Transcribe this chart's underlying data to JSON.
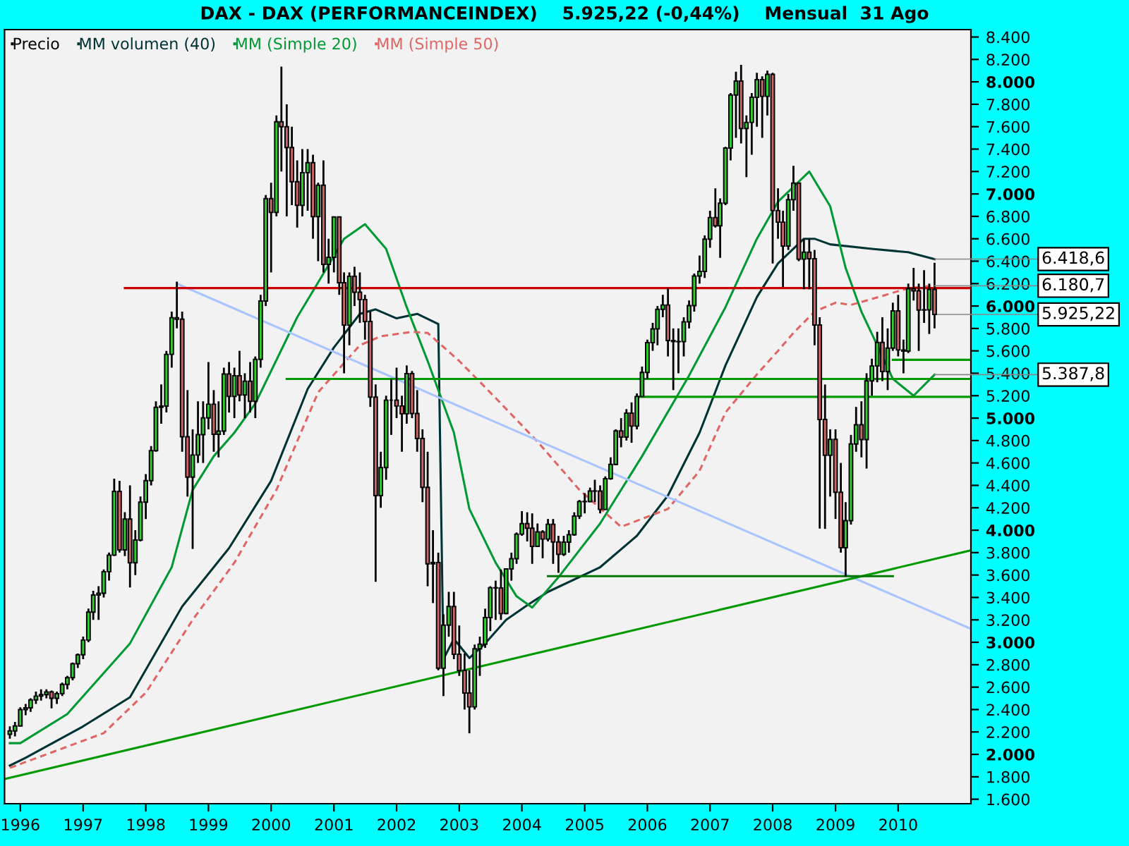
{
  "chart_data": {
    "type": "candlestick",
    "title": "DAX - DAX (PERFORMANCEINDEX)    5.925,22 (-0,44%)    Mensual  31 Ago",
    "legend": "top left",
    "grid": false,
    "xlim": [
      "1995-10",
      "2011-03"
    ],
    "xticks": [
      {
        "value": "1996",
        "label": "1996"
      },
      {
        "value": "1997",
        "label": "1997"
      },
      {
        "value": "1998",
        "label": "1998"
      },
      {
        "value": "1999",
        "label": "1999"
      },
      {
        "value": "2000",
        "label": "2000"
      },
      {
        "value": "2001",
        "label": "2001"
      },
      {
        "value": "2002",
        "label": "2002"
      },
      {
        "value": "2003",
        "label": "2003"
      },
      {
        "value": "2004",
        "label": "2004"
      },
      {
        "value": "2005",
        "label": "2005"
      },
      {
        "value": "2006",
        "label": "2006"
      },
      {
        "value": "2007",
        "label": "2007"
      },
      {
        "value": "2008",
        "label": "2008"
      },
      {
        "value": "2009",
        "label": "2009"
      },
      {
        "value": "2010",
        "label": "2010"
      }
    ],
    "ylim": [
      1560,
      8466
    ],
    "yticks": [
      {
        "value": 1600,
        "label": "1.600"
      },
      {
        "value": 1800,
        "label": "1.800"
      },
      {
        "value": 2000,
        "label": "2.000"
      },
      {
        "value": 2200,
        "label": "2.200"
      },
      {
        "value": 2400,
        "label": "2.400"
      },
      {
        "value": 2600,
        "label": "2.600"
      },
      {
        "value": 2800,
        "label": "2.800"
      },
      {
        "value": 3000,
        "label": "3.000"
      },
      {
        "value": 3200,
        "label": "3.200"
      },
      {
        "value": 3400,
        "label": "3.400"
      },
      {
        "value": 3600,
        "label": "3.600"
      },
      {
        "value": 3800,
        "label": "3.800"
      },
      {
        "value": 4000,
        "label": "4.000"
      },
      {
        "value": 4200,
        "label": "4.200"
      },
      {
        "value": 4400,
        "label": "4.400"
      },
      {
        "value": 4600,
        "label": "4.600"
      },
      {
        "value": 4800,
        "label": "4.800"
      },
      {
        "value": 5000,
        "label": "5.000"
      },
      {
        "value": 5200,
        "label": "5.200"
      },
      {
        "value": 5400,
        "label": "5.400"
      },
      {
        "value": 5600,
        "label": "5.600"
      },
      {
        "value": 5800,
        "label": "5.800"
      },
      {
        "value": 6000,
        "label": "6.000"
      },
      {
        "value": 6200,
        "label": "6.200"
      },
      {
        "value": 6400,
        "label": "6.400"
      },
      {
        "value": 6600,
        "label": "6.600"
      },
      {
        "value": 6800,
        "label": "6.800"
      },
      {
        "value": 7000,
        "label": "7.000"
      },
      {
        "value": 7200,
        "label": "7.200"
      },
      {
        "value": 7400,
        "label": "7.400"
      },
      {
        "value": 7600,
        "label": "7.600"
      },
      {
        "value": 7800,
        "label": "7.800"
      },
      {
        "value": 8000,
        "label": "8.000"
      },
      {
        "value": 8200,
        "label": "8.200"
      },
      {
        "value": 8400,
        "label": "8.400"
      }
    ],
    "annotations": [
      {
        "text": "6.418,6",
        "x": "2010-08",
        "y": 6418.6
      },
      {
        "text": "6.180,7",
        "x": "2010-08",
        "y": 6180.7
      },
      {
        "text": "5.925,22",
        "x": "2010-08",
        "y": 5925.22
      },
      {
        "text": "5.387,8",
        "x": "2010-08",
        "y": 5387.8
      }
    ],
    "series": [
      {
        "name": "Precio",
        "color": "#000000",
        "x": [
          "1995-11",
          "1995-12",
          "1996-01",
          "1996-02",
          "1996-03",
          "1996-04",
          "1996-05",
          "1996-06",
          "1996-07",
          "1996-08",
          "1996-09",
          "1996-10",
          "1996-11",
          "1996-12",
          "1997-01",
          "1997-02",
          "1997-03",
          "1997-04",
          "1997-05",
          "1997-06",
          "1997-07",
          "1997-08",
          "1997-09",
          "1997-10",
          "1997-11",
          "1997-12",
          "1998-01",
          "1998-02",
          "1998-03",
          "1998-04",
          "1998-05",
          "1998-06",
          "1998-07",
          "1998-08",
          "1998-09",
          "1998-10",
          "1998-11",
          "1998-12",
          "1999-01",
          "1999-02",
          "1999-03",
          "1999-04",
          "1999-05",
          "1999-06",
          "1999-07",
          "1999-08",
          "1999-09",
          "1999-10",
          "1999-11",
          "1999-12",
          "2000-01",
          "2000-02",
          "2000-03",
          "2000-04",
          "2000-05",
          "2000-06",
          "2000-07",
          "2000-08",
          "2000-09",
          "2000-10",
          "2000-11",
          "2000-12",
          "2001-01",
          "2001-02",
          "2001-03",
          "2001-04",
          "2001-05",
          "2001-06",
          "2001-07",
          "2001-08",
          "2001-09",
          "2001-10",
          "2001-11",
          "2001-12",
          "2002-01",
          "2002-02",
          "2002-03",
          "2002-04",
          "2002-05",
          "2002-06",
          "2002-07",
          "2002-08",
          "2002-09",
          "2002-10",
          "2002-11",
          "2002-12",
          "2003-01",
          "2003-02",
          "2003-03",
          "2003-04",
          "2003-05",
          "2003-06",
          "2003-07",
          "2003-08",
          "2003-09",
          "2003-10",
          "2003-11",
          "2003-12",
          "2004-01",
          "2004-02",
          "2004-03",
          "2004-04",
          "2004-05",
          "2004-06",
          "2004-07",
          "2004-08",
          "2004-09",
          "2004-10",
          "2004-11",
          "2004-12",
          "2005-01",
          "2005-02",
          "2005-03",
          "2005-04",
          "2005-05",
          "2005-06",
          "2005-07",
          "2005-08",
          "2005-09",
          "2005-10",
          "2005-11",
          "2005-12",
          "2006-01",
          "2006-02",
          "2006-03",
          "2006-04",
          "2006-05",
          "2006-06",
          "2006-07",
          "2006-08",
          "2006-09",
          "2006-10",
          "2006-11",
          "2006-12",
          "2007-01",
          "2007-02",
          "2007-03",
          "2007-04",
          "2007-05",
          "2007-06",
          "2007-07",
          "2007-08",
          "2007-09",
          "2007-10",
          "2007-11",
          "2007-12",
          "2008-01",
          "2008-02",
          "2008-03",
          "2008-04",
          "2008-05",
          "2008-06",
          "2008-07",
          "2008-08",
          "2008-09",
          "2008-10",
          "2008-11",
          "2008-12",
          "2009-01",
          "2009-02",
          "2009-03",
          "2009-04",
          "2009-05",
          "2009-06",
          "2009-07",
          "2009-08",
          "2009-09",
          "2009-10",
          "2009-11",
          "2009-12",
          "2010-01",
          "2010-02",
          "2010-03",
          "2010-04",
          "2010-05",
          "2010-06",
          "2010-07",
          "2010-08"
        ],
        "ohlc": [
          [
            2180,
            2250,
            2140,
            2210
          ],
          [
            2210,
            2290,
            2160,
            2254
          ],
          [
            2254,
            2420,
            2250,
            2400
          ],
          [
            2400,
            2450,
            2350,
            2415
          ],
          [
            2415,
            2500,
            2380,
            2486
          ],
          [
            2486,
            2560,
            2450,
            2520
          ],
          [
            2520,
            2580,
            2480,
            2533
          ],
          [
            2533,
            2580,
            2500,
            2557
          ],
          [
            2557,
            2570,
            2410,
            2500
          ],
          [
            2500,
            2560,
            2450,
            2542
          ],
          [
            2542,
            2640,
            2520,
            2625
          ],
          [
            2625,
            2700,
            2580,
            2684
          ],
          [
            2684,
            2820,
            2660,
            2808
          ],
          [
            2808,
            2900,
            2770,
            2889
          ],
          [
            2889,
            3050,
            2850,
            3020
          ],
          [
            3020,
            3300,
            3000,
            3269
          ],
          [
            3269,
            3460,
            3200,
            3422
          ],
          [
            3422,
            3500,
            3200,
            3438
          ],
          [
            3438,
            3650,
            3400,
            3630
          ],
          [
            3630,
            3800,
            3550,
            3778
          ],
          [
            3778,
            4460,
            3770,
            4346
          ],
          [
            4346,
            4440,
            3800,
            3824
          ],
          [
            3824,
            4160,
            3770,
            4100
          ],
          [
            4100,
            4400,
            3490,
            3709
          ],
          [
            3709,
            4000,
            3600,
            3912
          ],
          [
            3912,
            4300,
            3900,
            4250
          ],
          [
            4250,
            4500,
            4100,
            4442
          ],
          [
            4442,
            4750,
            4400,
            4710
          ],
          [
            4710,
            5150,
            4700,
            5096
          ],
          [
            5096,
            5300,
            4950,
            5107
          ],
          [
            5107,
            5600,
            5050,
            5569
          ],
          [
            5569,
            5950,
            5450,
            5896
          ],
          [
            5896,
            6218,
            5800,
            5883
          ],
          [
            5883,
            5950,
            4700,
            4834
          ],
          [
            4834,
            5250,
            4300,
            4474
          ],
          [
            4474,
            4900,
            3833,
            4671
          ],
          [
            4671,
            5150,
            4600,
            4853
          ],
          [
            4853,
            5150,
            4600,
            5002
          ],
          [
            5002,
            5500,
            4900,
            5124
          ],
          [
            5124,
            5250,
            4700,
            4856
          ],
          [
            4856,
            5150,
            4650,
            4884
          ],
          [
            4884,
            5450,
            4850,
            5393
          ],
          [
            5393,
            5500,
            5050,
            5194
          ],
          [
            5194,
            5450,
            5000,
            5378
          ],
          [
            5378,
            5600,
            5150,
            5207
          ],
          [
            5207,
            5400,
            5000,
            5329
          ],
          [
            5329,
            5500,
            5050,
            5150
          ],
          [
            5150,
            5550,
            5000,
            5524
          ],
          [
            5524,
            6100,
            5450,
            6045
          ],
          [
            6045,
            6990,
            6000,
            6958
          ],
          [
            6958,
            7100,
            6300,
            6835
          ],
          [
            6835,
            7700,
            6800,
            7644
          ],
          [
            7644,
            8136,
            7200,
            7599
          ],
          [
            7599,
            7800,
            6800,
            7414
          ],
          [
            7414,
            7600,
            6900,
            7109
          ],
          [
            7109,
            7300,
            6700,
            6898
          ],
          [
            6898,
            7400,
            6800,
            7190
          ],
          [
            7190,
            7400,
            6850,
            7279
          ],
          [
            7279,
            7350,
            6600,
            6798
          ],
          [
            6798,
            7100,
            6400,
            7077
          ],
          [
            7077,
            7300,
            6300,
            6372
          ],
          [
            6372,
            6600,
            6200,
            6434
          ],
          [
            6434,
            6800,
            6300,
            6795
          ],
          [
            6795,
            6800,
            6100,
            6208
          ],
          [
            6208,
            6300,
            5400,
            5830
          ],
          [
            5830,
            6300,
            5650,
            6265
          ],
          [
            6265,
            6350,
            6000,
            6123
          ],
          [
            6123,
            6300,
            5850,
            6058
          ],
          [
            6058,
            6100,
            5700,
            5862
          ],
          [
            5862,
            5950,
            5100,
            5188
          ],
          [
            5188,
            5300,
            3540,
            4308
          ],
          [
            4308,
            4700,
            4200,
            4559
          ],
          [
            4559,
            5200,
            4450,
            5160
          ],
          [
            5160,
            5350,
            4850,
            5160
          ],
          [
            5160,
            5450,
            5000,
            5108
          ],
          [
            5108,
            5200,
            4700,
            5039
          ],
          [
            5039,
            5470,
            4950,
            5397
          ],
          [
            5397,
            5420,
            5000,
            5041
          ],
          [
            5041,
            5250,
            4700,
            4818
          ],
          [
            4818,
            4900,
            4250,
            4383
          ],
          [
            4383,
            4700,
            3500,
            3700
          ],
          [
            3700,
            4000,
            3350,
            3712
          ],
          [
            3712,
            3800,
            2750,
            2769
          ],
          [
            2769,
            3250,
            2520,
            3153
          ],
          [
            3153,
            3450,
            3050,
            3320
          ],
          [
            3320,
            3450,
            2850,
            2893
          ],
          [
            2893,
            3150,
            2700,
            2748
          ],
          [
            2748,
            2900,
            2400,
            2547
          ],
          [
            2547,
            2750,
            2188,
            2424
          ],
          [
            2424,
            2980,
            2400,
            2942
          ],
          [
            2942,
            3050,
            2700,
            2983
          ],
          [
            2983,
            3300,
            2950,
            3221
          ],
          [
            3221,
            3500,
            3100,
            3487
          ],
          [
            3487,
            3550,
            3200,
            3485
          ],
          [
            3485,
            3650,
            3200,
            3257
          ],
          [
            3257,
            3660,
            3250,
            3655
          ],
          [
            3655,
            3800,
            3550,
            3746
          ],
          [
            3746,
            3980,
            3700,
            3965
          ],
          [
            3965,
            4170,
            3950,
            4058
          ],
          [
            4058,
            4160,
            3900,
            4018
          ],
          [
            4018,
            4150,
            3700,
            3856
          ],
          [
            3856,
            4060,
            3850,
            3985
          ],
          [
            3985,
            4000,
            3750,
            3921
          ],
          [
            3921,
            4100,
            3900,
            4053
          ],
          [
            4053,
            4100,
            3700,
            3895
          ],
          [
            3895,
            3950,
            3620,
            3785
          ],
          [
            3785,
            3950,
            3770,
            3893
          ],
          [
            3893,
            4000,
            3800,
            3960
          ],
          [
            3960,
            4160,
            3950,
            4126
          ],
          [
            4126,
            4270,
            4100,
            4256
          ],
          [
            4256,
            4330,
            4150,
            4255
          ],
          [
            4255,
            4380,
            4250,
            4350
          ],
          [
            4350,
            4450,
            4250,
            4349
          ],
          [
            4349,
            4400,
            4150,
            4185
          ],
          [
            4185,
            4480,
            4180,
            4460
          ],
          [
            4460,
            4650,
            4450,
            4587
          ],
          [
            4587,
            4900,
            4580,
            4886
          ],
          [
            4886,
            5000,
            4740,
            4830
          ],
          [
            4830,
            5080,
            4800,
            5044
          ],
          [
            5044,
            5140,
            4780,
            4929
          ],
          [
            4929,
            5220,
            4900,
            5193
          ],
          [
            5193,
            5460,
            5190,
            5408
          ],
          [
            5408,
            5700,
            5350,
            5674
          ],
          [
            5674,
            5850,
            5600,
            5796
          ],
          [
            5796,
            6000,
            5650,
            5970
          ],
          [
            5970,
            6100,
            5900,
            6009
          ],
          [
            6009,
            6160,
            5550,
            5692
          ],
          [
            5692,
            5800,
            5250,
            5683
          ],
          [
            5683,
            5800,
            5400,
            5682
          ],
          [
            5682,
            5900,
            5550,
            5859
          ],
          [
            5859,
            6050,
            5800,
            6004
          ],
          [
            6004,
            6290,
            5950,
            6268
          ],
          [
            6268,
            6450,
            6200,
            6309
          ],
          [
            6309,
            6630,
            6250,
            6597
          ],
          [
            6597,
            6850,
            6520,
            6789
          ],
          [
            6789,
            7050,
            6700,
            6716
          ],
          [
            6716,
            6960,
            6430,
            6917
          ],
          [
            6917,
            7420,
            6900,
            7409
          ],
          [
            7409,
            7900,
            7300,
            7883
          ],
          [
            7883,
            8090,
            7500,
            8007
          ],
          [
            8007,
            8151,
            7450,
            7584
          ],
          [
            7584,
            7700,
            7150,
            7638
          ],
          [
            7638,
            7900,
            7350,
            7862
          ],
          [
            7862,
            8080,
            7600,
            8020
          ],
          [
            8020,
            8050,
            7500,
            7871
          ],
          [
            7871,
            8100,
            7700,
            8067
          ],
          [
            8067,
            8080,
            6380,
            6852
          ],
          [
            6852,
            7050,
            6600,
            6748
          ],
          [
            6748,
            6850,
            6170,
            6535
          ],
          [
            6535,
            7000,
            6500,
            6949
          ],
          [
            6949,
            7250,
            6850,
            7097
          ],
          [
            7097,
            7100,
            6400,
            6418
          ],
          [
            6418,
            6600,
            6150,
            6480
          ],
          [
            6480,
            6600,
            6150,
            6422
          ],
          [
            6422,
            6500,
            5650,
            5831
          ],
          [
            5831,
            5900,
            4014,
            4988
          ],
          [
            4988,
            5300,
            4012,
            4669
          ],
          [
            4669,
            4900,
            4300,
            4810
          ],
          [
            4810,
            4900,
            4100,
            4338
          ],
          [
            4338,
            4600,
            3800,
            3844
          ],
          [
            3844,
            4250,
            3588,
            4085
          ],
          [
            4085,
            4850,
            4050,
            4769
          ],
          [
            4769,
            5100,
            4700,
            4941
          ],
          [
            4941,
            5150,
            4650,
            4809
          ],
          [
            4809,
            5400,
            4550,
            5332
          ],
          [
            5332,
            5530,
            5200,
            5465
          ],
          [
            5465,
            5770,
            5320,
            5675
          ],
          [
            5675,
            5900,
            5330,
            5415
          ],
          [
            5415,
            5800,
            5250,
            5625
          ],
          [
            5625,
            6030,
            5600,
            5957
          ],
          [
            5957,
            6100,
            5550,
            5608
          ],
          [
            5608,
            5700,
            5400,
            5598
          ],
          [
            5598,
            6200,
            5580,
            6154
          ],
          [
            6154,
            6340,
            6050,
            6136
          ],
          [
            6136,
            6200,
            5600,
            5964
          ],
          [
            5964,
            6320,
            5850,
            5966
          ],
          [
            5966,
            6200,
            5750,
            6148
          ],
          [
            6148,
            6386,
            5800,
            5925
          ]
        ]
      },
      {
        "name": "MM volumen (40)",
        "type": "line",
        "color": "#003333",
        "x": [
          "1995-11",
          "1996-02",
          "1997-01",
          "1997-10",
          "1998-08",
          "1999-05",
          "2000-01",
          "2000-08",
          "2001-01",
          "2001-06",
          "2001-09",
          "2002-01",
          "2002-05",
          "2002-09",
          "2002-10",
          "2002-12",
          "2003-03",
          "2003-06",
          "2003-10",
          "2004-02",
          "2004-06",
          "2005-04",
          "2005-11",
          "2006-05",
          "2006-11",
          "2007-04",
          "2007-10",
          "2008-02",
          "2008-07",
          "2008-09",
          "2008-12",
          "2009-08",
          "2010-03",
          "2010-08"
        ],
        "values": [
          1900,
          1970,
          2250,
          2510,
          3320,
          3840,
          4440,
          5260,
          5630,
          5930,
          5970,
          5890,
          5930,
          5840,
          2850,
          3030,
          2860,
          2990,
          3200,
          3330,
          3450,
          3670,
          3950,
          4310,
          4870,
          5470,
          6080,
          6380,
          6600,
          6600,
          6550,
          6510,
          6480,
          6418.6
        ]
      },
      {
        "name": "MM (Simple 20)",
        "type": "line",
        "color": "#009933",
        "x": [
          "1995-11",
          "1996-01",
          "1996-10",
          "1997-10",
          "1998-06",
          "1998-10",
          "1999-02",
          "1999-06",
          "1999-10",
          "2000-06",
          "2000-11",
          "2001-03",
          "2001-07",
          "2001-11",
          "2002-03",
          "2002-07",
          "2002-12",
          "2003-03",
          "2003-08",
          "2003-12",
          "2004-03",
          "2004-08",
          "2005-04",
          "2005-12",
          "2006-09",
          "2007-04",
          "2007-10",
          "2008-02",
          "2008-08",
          "2008-12",
          "2009-03",
          "2009-06",
          "2009-09",
          "2009-12",
          "2010-04",
          "2010-08"
        ],
        "values": [
          2100,
          2100,
          2360,
          2990,
          3670,
          4360,
          4660,
          4870,
          5130,
          5900,
          6290,
          6600,
          6730,
          6510,
          5990,
          5510,
          4870,
          4190,
          3710,
          3410,
          3310,
          3580,
          4060,
          4660,
          5380,
          5990,
          6600,
          6930,
          7200,
          6890,
          6340,
          5950,
          5650,
          5350,
          5200,
          5387.8
        ]
      },
      {
        "name": "MM (Simple 50)",
        "type": "line",
        "color": "#e06666",
        "line_style": "dashed",
        "x": [
          "1995-11",
          "1996-06",
          "1997-05",
          "1998-01",
          "1998-10",
          "1999-06",
          "2000-02",
          "2000-10",
          "2001-06",
          "2001-10",
          "2002-04",
          "2002-07",
          "2003-01",
          "2003-08",
          "2004-04",
          "2004-12",
          "2005-08",
          "2006-05",
          "2006-11",
          "2007-04",
          "2007-10",
          "2008-02",
          "2008-05",
          "2008-09",
          "2009-01",
          "2009-04",
          "2009-10",
          "2010-03",
          "2010-08"
        ],
        "values": [
          1880,
          2000,
          2190,
          2550,
          3200,
          3710,
          4360,
          5230,
          5650,
          5730,
          5770,
          5760,
          5510,
          5180,
          4790,
          4360,
          4030,
          4190,
          4530,
          5050,
          5390,
          5600,
          5760,
          5950,
          6030,
          6010,
          6090,
          6160,
          6180.7
        ]
      },
      {
        "type": "line",
        "color": "#aac4ff",
        "x": [
          "1998-07",
          "2011-03"
        ],
        "values": [
          6200,
          3120
        ]
      },
      {
        "type": "line",
        "color": "#009900",
        "x": [
          "1995-10",
          "2011-03"
        ],
        "values": [
          1780,
          3820
        ]
      },
      {
        "type": "line",
        "color": "#cc0000",
        "x": [
          "1997-09",
          "2011-03"
        ],
        "values": [
          6160,
          6160
        ]
      },
      {
        "type": "line",
        "color": "#009900",
        "x": [
          "2000-04",
          "2011-03"
        ],
        "values": [
          5350,
          5350
        ]
      },
      {
        "type": "line",
        "color": "#009900",
        "x": [
          "2005-11",
          "2011-03"
        ],
        "values": [
          5190,
          5190
        ]
      },
      {
        "type": "line",
        "color": "#009900",
        "x": [
          "2009-12",
          "2011-03"
        ],
        "values": [
          5520,
          5520
        ]
      },
      {
        "type": "line",
        "color": "#007700",
        "x": [
          "2004-06",
          "2009-12"
        ],
        "values": [
          3590,
          3590
        ]
      }
    ]
  }
}
